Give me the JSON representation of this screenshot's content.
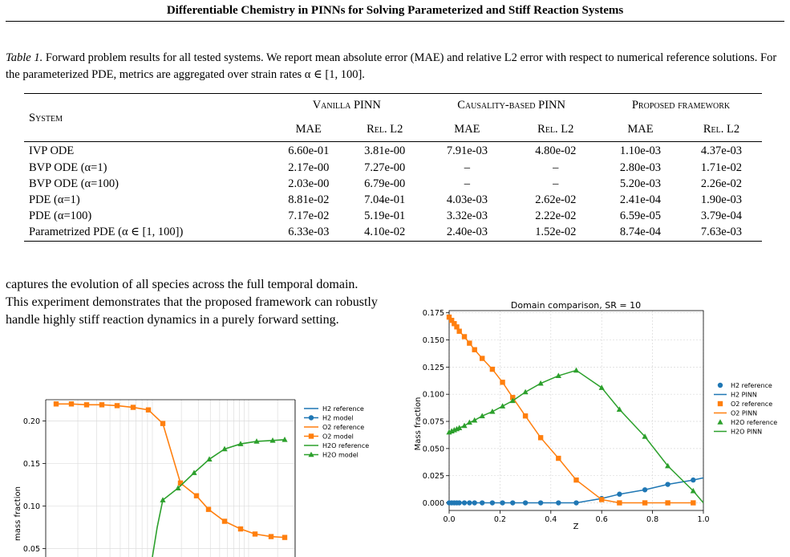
{
  "header": "Differentiable Chemistry in PINNs for Solving Parameterized and Stiff Reaction Systems",
  "caption": {
    "label": "Table 1.",
    "text": "Forward problem results for all tested systems. We report mean absolute error (MAE) and relative L2 error with respect to numerical reference solutions. For the parameterized PDE, metrics are aggregated over strain rates α ∈ [1, 100]."
  },
  "table": {
    "system_header": "System",
    "groups": [
      "Vanilla PINN",
      "Causality-based PINN",
      "Proposed framework"
    ],
    "subheaders": [
      "MAE",
      "Rel. L2",
      "MAE",
      "Rel. L2",
      "MAE",
      "Rel. L2"
    ],
    "rows": [
      [
        "IVP ODE",
        "6.60e-01",
        "3.81e-00",
        "7.91e-03",
        "4.80e-02",
        "1.10e-03",
        "4.37e-03"
      ],
      [
        "BVP ODE (α=1)",
        "2.17e-00",
        "7.27e-00",
        "–",
        "–",
        "2.80e-03",
        "1.71e-02"
      ],
      [
        "BVP ODE (α=100)",
        "2.03e-00",
        "6.79e-00",
        "–",
        "–",
        "5.20e-03",
        "2.26e-02"
      ],
      [
        "PDE (α=1)",
        "8.81e-02",
        "7.04e-01",
        "4.03e-03",
        "2.62e-02",
        "2.41e-04",
        "1.90e-03"
      ],
      [
        "PDE (α=100)",
        "7.17e-02",
        "5.19e-01",
        "3.32e-03",
        "2.22e-02",
        "6.59e-05",
        "3.79e-04"
      ],
      [
        "Parametrized PDE (α ∈ [1, 100])",
        "6.33e-03",
        "4.10e-02",
        "2.40e-03",
        "1.52e-02",
        "8.74e-04",
        "7.63e-03"
      ]
    ]
  },
  "body_text": "captures the evolution of all species across the full temporal domain. This experiment demonstrates that the proposed framework can robustly handle highly stiff reaction dynamics in a purely forward setting.",
  "colors": {
    "blue": "#1f77b4",
    "orange": "#ff7f0e",
    "green": "#2ca02c"
  },
  "chart_data": [
    {
      "type": "line",
      "title": "",
      "xlabel": "",
      "ylabel": "mass fraction",
      "ylim": [
        0.04,
        0.225
      ],
      "yticks": [
        "0.05",
        "0.10",
        "0.15",
        "0.20"
      ],
      "xscale": "log",
      "legend": "outside right",
      "legend_entries": [
        "H2 reference",
        "H2 model",
        "O2 reference",
        "O2 model",
        "H2O reference",
        "H2O model"
      ],
      "series": [
        {
          "name": "O2 model",
          "values": [
            0.22,
            0.22,
            0.219,
            0.219,
            0.218,
            0.216,
            0.213,
            0.197,
            0.127,
            0.112,
            0.096,
            0.082,
            0.073,
            0.067,
            0.064,
            0.063
          ]
        },
        {
          "name": "H2O model",
          "values": [
            0.107,
            0.121,
            0.139,
            0.155,
            0.167,
            0.173,
            0.176,
            0.177,
            0.178
          ]
        }
      ]
    },
    {
      "type": "line",
      "title": "Domain comparison, SR = 10",
      "xlabel": "Z",
      "ylabel": "Mass fraction",
      "xlim": [
        0,
        1
      ],
      "ylim": [
        -0.007,
        0.177
      ],
      "xticks": [
        "0.0",
        "0.2",
        "0.4",
        "0.6",
        "0.8",
        "1.0"
      ],
      "yticks": [
        "0.000",
        "0.025",
        "0.050",
        "0.075",
        "0.100",
        "0.125",
        "0.150",
        "0.175"
      ],
      "grid": true,
      "legend": "outside right",
      "legend_entries": [
        "H2 reference",
        "H2 PINN",
        "O2 reference",
        "O2 PINN",
        "H2O reference",
        "H2O PINN"
      ],
      "series": [
        {
          "name": "H2 reference",
          "x": [
            0,
            0.01,
            0.02,
            0.03,
            0.04,
            0.06,
            0.08,
            0.1,
            0.13,
            0.17,
            0.21,
            0.25,
            0.3,
            0.36,
            0.43,
            0.5,
            0.6,
            0.67,
            0.77,
            0.86,
            0.96
          ],
          "y": [
            0,
            0,
            0,
            0,
            0,
            0,
            0,
            0,
            0,
            0,
            0,
            0,
            0,
            0,
            0,
            0,
            0.004,
            0.008,
            0.012,
            0.017,
            0.021
          ]
        },
        {
          "name": "O2 reference",
          "x": [
            0,
            0.01,
            0.02,
            0.03,
            0.04,
            0.06,
            0.08,
            0.1,
            0.13,
            0.17,
            0.21,
            0.25,
            0.3,
            0.36,
            0.43,
            0.5,
            0.6,
            0.67,
            0.77,
            0.86,
            0.96
          ],
          "y": [
            0.171,
            0.168,
            0.165,
            0.162,
            0.158,
            0.153,
            0.147,
            0.141,
            0.133,
            0.123,
            0.111,
            0.097,
            0.08,
            0.06,
            0.041,
            0.021,
            0.003,
            0,
            0,
            0,
            0
          ]
        },
        {
          "name": "H2O reference",
          "x": [
            0,
            0.01,
            0.02,
            0.03,
            0.04,
            0.06,
            0.08,
            0.1,
            0.13,
            0.17,
            0.21,
            0.25,
            0.3,
            0.36,
            0.43,
            0.5,
            0.6,
            0.67,
            0.77,
            0.86,
            0.96
          ],
          "y": [
            0.065,
            0.066,
            0.067,
            0.068,
            0.069,
            0.071,
            0.074,
            0.076,
            0.08,
            0.084,
            0.089,
            0.094,
            0.102,
            0.11,
            0.117,
            0.122,
            0.106,
            0.086,
            0.061,
            0.034,
            0.011
          ]
        }
      ]
    }
  ]
}
